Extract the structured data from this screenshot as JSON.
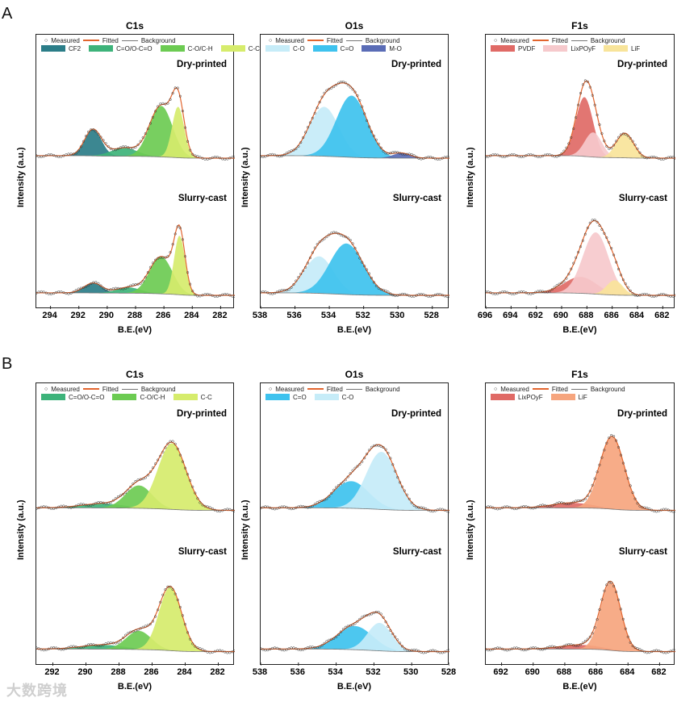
{
  "panel_labels": [
    "A",
    "B"
  ],
  "watermark": "大数跨境",
  "common": {
    "measured": "Measured",
    "fitted": "Fitted",
    "background": "Background",
    "ylabel": "Intensity (a.u.)",
    "xlabel": "B.E.(eV)",
    "samples": [
      "Dry-printed",
      "Slurry-cast"
    ],
    "fit_color": "#e2652e",
    "bg_color": "#777777"
  },
  "chart_data": [
    {
      "type": "area",
      "title": "C1s",
      "xlim": [
        295,
        281
      ],
      "ticks": [
        294,
        292,
        290,
        288,
        286,
        284,
        282
      ],
      "components": [
        {
          "name": "CF2",
          "color": "#2b7d88"
        },
        {
          "name": "C=O/O-C=O",
          "color": "#3db37a"
        },
        {
          "name": "C-O/C-H",
          "color": "#6ccb52"
        },
        {
          "name": "C-C",
          "color": "#d6ec6c"
        }
      ],
      "spectra": [
        {
          "sample": "Dry-printed",
          "peaks": [
            [
              291.0,
              0.32,
              1.4
            ],
            [
              288.8,
              0.1,
              2.2
            ],
            [
              286.2,
              0.62,
              1.9
            ],
            [
              285.0,
              0.62,
              1.0
            ]
          ]
        },
        {
          "sample": "Slurry-cast",
          "peaks": [
            [
              291.0,
              0.12,
              1.5
            ],
            [
              288.5,
              0.07,
              2.0
            ],
            [
              286.2,
              0.45,
              1.9
            ],
            [
              284.9,
              0.72,
              0.9
            ]
          ]
        }
      ]
    },
    {
      "type": "area",
      "title": "O1s",
      "xlim": [
        538,
        527
      ],
      "ticks": [
        538,
        536,
        534,
        532,
        530,
        528
      ],
      "components": [
        {
          "name": "C-O",
          "color": "#c6ecf8"
        },
        {
          "name": "C=O",
          "color": "#3ec2ee"
        },
        {
          "name": "M-O",
          "color": "#5a6cb6"
        }
      ],
      "spectra": [
        {
          "sample": "Dry-printed",
          "peaks": [
            [
              534.3,
              0.6,
              2.0
            ],
            [
              532.7,
              0.75,
              2.1
            ],
            [
              529.8,
              0.06,
              1.2
            ]
          ]
        },
        {
          "sample": "Slurry-cast",
          "peaks": [
            [
              534.6,
              0.45,
              2.0
            ],
            [
              533.0,
              0.62,
              2.3
            ]
          ]
        }
      ]
    },
    {
      "type": "area",
      "title": "F1s",
      "xlim": [
        696,
        681
      ],
      "ticks": [
        696,
        694,
        692,
        690,
        688,
        686,
        684,
        682
      ],
      "components": [
        {
          "name": "PVDF",
          "color": "#e06a66"
        },
        {
          "name": "LixPOyF",
          "color": "#f6c9cc"
        },
        {
          "name": "LiF",
          "color": "#f8e49a"
        }
      ],
      "spectra": [
        {
          "sample": "Dry-printed",
          "peaks": [
            [
              688.2,
              0.72,
              1.6
            ],
            [
              687.5,
              0.3,
              1.6
            ],
            [
              685.0,
              0.3,
              1.6
            ]
          ]
        },
        {
          "sample": "Slurry-cast",
          "peaks": [
            [
              688.5,
              0.2,
              3.0
            ],
            [
              687.3,
              0.75,
              2.4
            ],
            [
              685.8,
              0.18,
              1.5
            ]
          ]
        }
      ]
    },
    {
      "type": "area",
      "title": "C1s",
      "xlim": [
        293,
        281
      ],
      "ticks": [
        292,
        290,
        288,
        286,
        284,
        282
      ],
      "components": [
        {
          "name": "C=O/O-C=O",
          "color": "#3db37a"
        },
        {
          "name": "C-O/C-H",
          "color": "#6ccb52"
        },
        {
          "name": "C-C",
          "color": "#d6ec6c"
        }
      ],
      "spectra": [
        {
          "sample": "Dry-printed",
          "peaks": [
            [
              289.0,
              0.05,
              3.0
            ],
            [
              286.8,
              0.27,
              1.9
            ],
            [
              284.8,
              0.78,
              2.0
            ]
          ]
        },
        {
          "sample": "Slurry-cast",
          "peaks": [
            [
              289.0,
              0.05,
              3.0
            ],
            [
              286.8,
              0.22,
              1.8
            ],
            [
              284.9,
              0.75,
              1.6
            ]
          ]
        }
      ]
    },
    {
      "type": "area",
      "title": "O1s",
      "xlim": [
        538,
        528
      ],
      "ticks": [
        538,
        536,
        534,
        532,
        530,
        528
      ],
      "components": [
        {
          "name": "C=O",
          "color": "#3ec2ee"
        },
        {
          "name": "C-O",
          "color": "#c6ecf8"
        }
      ],
      "spectra": [
        {
          "sample": "Dry-printed",
          "peaks": [
            [
              533.2,
              0.32,
              2.2
            ],
            [
              531.6,
              0.68,
              1.9
            ]
          ]
        },
        {
          "sample": "Slurry-cast",
          "peaks": [
            [
              533.0,
              0.28,
              2.2
            ],
            [
              531.7,
              0.33,
              1.5
            ]
          ]
        }
      ]
    },
    {
      "type": "area",
      "title": "F1s",
      "xlim": [
        693,
        681
      ],
      "ticks": [
        692,
        690,
        688,
        686,
        684,
        682
      ],
      "components": [
        {
          "name": "LixPOyF",
          "color": "#e06a66"
        },
        {
          "name": "LiF",
          "color": "#f6a57e"
        }
      ],
      "spectra": [
        {
          "sample": "Dry-printed",
          "peaks": [
            [
              687.5,
              0.06,
              3.0
            ],
            [
              685.0,
              0.85,
              1.8
            ]
          ]
        },
        {
          "sample": "Slurry-cast",
          "peaks": [
            [
              687.0,
              0.05,
              3.0
            ],
            [
              685.1,
              0.8,
              1.5
            ]
          ]
        }
      ]
    }
  ]
}
